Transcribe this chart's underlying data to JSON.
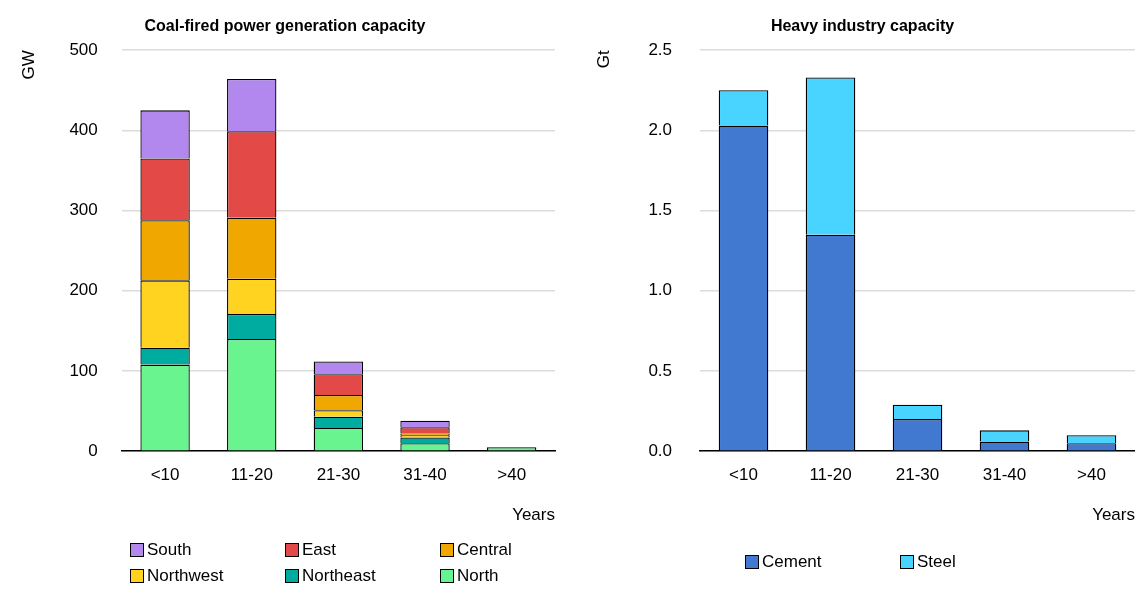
{
  "chart_data": [
    {
      "type": "bar",
      "title": "Coal-fired power generation capacity",
      "ylabel": "GW",
      "xlabel": "Years",
      "categories": [
        "<10",
        "11-20",
        "21-30",
        "31-40",
        ">40"
      ],
      "stacked": true,
      "ylim": [
        0,
        500
      ],
      "yticks": [
        0,
        100,
        200,
        300,
        400,
        500
      ],
      "grid": "y",
      "legend": "bottom",
      "series": [
        {
          "name": "North",
          "color": "#69f48f",
          "values": [
            108,
            140,
            29,
            10,
            5
          ]
        },
        {
          "name": "Northeast",
          "color": "#00ab9f",
          "values": [
            21,
            31,
            14,
            7,
            null
          ]
        },
        {
          "name": "Northwest",
          "color": "#ffd320",
          "values": [
            84,
            44,
            8,
            3,
            null
          ]
        },
        {
          "name": "Central",
          "color": "#f0a800",
          "values": [
            75,
            76,
            19,
            2,
            null
          ]
        },
        {
          "name": "East",
          "color": "#e34a47",
          "values": [
            77,
            108,
            26,
            8,
            null
          ]
        },
        {
          "name": "South",
          "color": "#b388ee",
          "values": [
            60,
            65,
            16,
            8,
            null
          ]
        }
      ]
    },
    {
      "type": "bar",
      "title": "Heavy industry capacity",
      "ylabel": "Gt",
      "xlabel": "Years",
      "categories": [
        "<10",
        "11-20",
        "21-30",
        "31-40",
        ">40"
      ],
      "stacked": true,
      "ylim": [
        0,
        2.5
      ],
      "yticks": [
        {
          "value": 0,
          "label": "0.0"
        },
        {
          "value": 0.5,
          "label": "0.5"
        },
        {
          "value": 1,
          "label": "1.0"
        },
        {
          "value": 1.5,
          "label": "1.5"
        },
        {
          "value": 2,
          "label": "2.0"
        },
        {
          "value": 2.5,
          "label": "2.5"
        }
      ],
      "grid": "y",
      "legend": "bottom",
      "series": [
        {
          "name": "Cement",
          "color": "#4178d0",
          "values": [
            2.03,
            1.35,
            0.2,
            0.06,
            0.05
          ]
        },
        {
          "name": "Steel",
          "color": "#48d4fe",
          "values": [
            0.22,
            0.98,
            0.09,
            0.07,
            0.05
          ]
        }
      ]
    }
  ]
}
